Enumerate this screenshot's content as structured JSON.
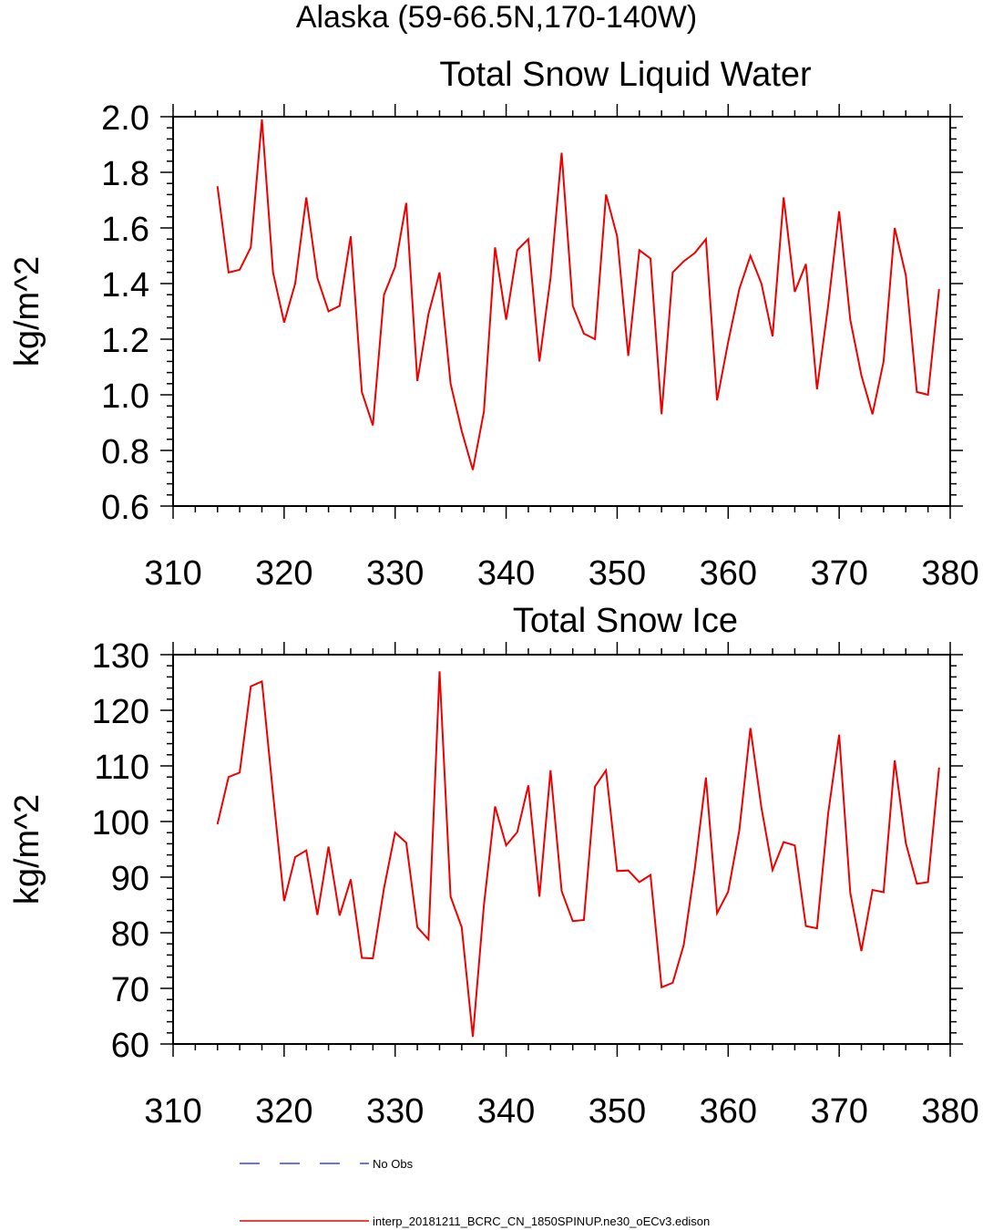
{
  "header": {
    "title": "Alaska (59-66.5N,170-140W)"
  },
  "legend": {
    "entries": [
      {
        "label": "No Obs",
        "color": "#3344ee",
        "style": "dashed"
      },
      {
        "label": "interp_20181211_BCRC_CN_1850SPINUP.ne30_oECv3.edison",
        "color": "#ee0000",
        "style": "solid"
      }
    ]
  },
  "chart_data": [
    {
      "type": "line",
      "title": "Total Snow Liquid Water",
      "xlabel": "",
      "ylabel": "kg/m^2",
      "xlim": [
        310,
        380
      ],
      "ylim": [
        0.6,
        2.0
      ],
      "xticks": [
        310,
        320,
        330,
        340,
        350,
        360,
        370,
        380
      ],
      "xtick_labels": [
        "310",
        "320",
        "330",
        "340",
        "350",
        "360",
        "370",
        "380"
      ],
      "yticks": [
        0.6,
        0.8,
        1.0,
        1.2,
        1.4,
        1.6,
        1.8,
        2.0
      ],
      "ytick_labels": [
        "0.6",
        "0.8",
        "1.0",
        "1.2",
        "1.4",
        "1.6",
        "1.8",
        "2.0"
      ],
      "grid": false,
      "series": [
        {
          "name": "interp_20181211_BCRC_CN_1850SPINUP.ne30_oECv3.edison",
          "color": "#ee0000",
          "x": [
            314,
            315,
            316,
            317,
            318,
            319,
            320,
            321,
            322,
            323,
            324,
            325,
            326,
            327,
            328,
            329,
            330,
            331,
            332,
            333,
            334,
            335,
            336,
            337,
            338,
            339,
            340,
            341,
            342,
            343,
            344,
            345,
            346,
            347,
            348,
            349,
            350,
            351,
            352,
            353,
            354,
            355,
            356,
            357,
            358,
            359,
            360,
            361,
            362,
            363,
            364,
            365,
            366,
            367,
            368,
            369,
            370,
            371,
            372,
            373,
            374,
            375,
            376,
            377,
            378,
            379
          ],
          "values": [
            1.75,
            1.44,
            1.45,
            1.53,
            1.99,
            1.44,
            1.26,
            1.4,
            1.71,
            1.42,
            1.3,
            1.32,
            1.57,
            1.01,
            0.89,
            1.36,
            1.46,
            1.69,
            1.05,
            1.29,
            1.44,
            1.04,
            0.87,
            0.73,
            0.94,
            1.53,
            1.27,
            1.52,
            1.56,
            1.12,
            1.42,
            1.87,
            1.32,
            1.22,
            1.2,
            1.72,
            1.57,
            1.14,
            1.52,
            1.49,
            0.93,
            1.44,
            1.48,
            1.51,
            1.56,
            0.98,
            1.19,
            1.38,
            1.5,
            1.4,
            1.21,
            1.71,
            1.37,
            1.47,
            1.02,
            1.32,
            1.66,
            1.27,
            1.07,
            0.93,
            1.12,
            1.6,
            1.43,
            1.01,
            1.0,
            1.38
          ]
        }
      ]
    },
    {
      "type": "line",
      "title": "Total Snow Ice",
      "xlabel": "",
      "ylabel": "kg/m^2",
      "xlim": [
        310,
        380
      ],
      "ylim": [
        60,
        130
      ],
      "xticks": [
        310,
        320,
        330,
        340,
        350,
        360,
        370,
        380
      ],
      "xtick_labels": [
        "310",
        "320",
        "330",
        "340",
        "350",
        "360",
        "370",
        "380"
      ],
      "yticks": [
        60,
        70,
        80,
        90,
        100,
        110,
        120,
        130
      ],
      "ytick_labels": [
        "60",
        "70",
        "80",
        "90",
        "100",
        "110",
        "120",
        "130"
      ],
      "grid": false,
      "series": [
        {
          "name": "interp_20181211_BCRC_CN_1850SPINUP.ne30_oECv3.edison",
          "color": "#ee0000",
          "x": [
            314,
            315,
            316,
            317,
            318,
            319,
            320,
            321,
            322,
            323,
            324,
            325,
            326,
            327,
            328,
            329,
            330,
            331,
            332,
            333,
            334,
            335,
            336,
            337,
            338,
            339,
            340,
            341,
            342,
            343,
            344,
            345,
            346,
            347,
            348,
            349,
            350,
            351,
            352,
            353,
            354,
            355,
            356,
            357,
            358,
            359,
            360,
            361,
            362,
            363,
            364,
            365,
            366,
            367,
            368,
            369,
            370,
            371,
            372,
            373,
            374,
            375,
            376,
            377,
            378,
            379
          ],
          "values": [
            99.5,
            108.0,
            108.8,
            124.3,
            125.2,
            105.0,
            85.7,
            93.6,
            94.8,
            83.2,
            95.5,
            83.1,
            89.6,
            75.5,
            75.4,
            88.0,
            98.0,
            96.2,
            81.0,
            78.8,
            127.0,
            86.5,
            81.0,
            61.3,
            85.0,
            102.7,
            95.7,
            98.1,
            106.5,
            86.5,
            109.2,
            87.5,
            82.1,
            82.3,
            106.3,
            109.2,
            91.1,
            91.2,
            89.1,
            90.4,
            70.2,
            71.0,
            77.8,
            91.6,
            107.9,
            83.5,
            87.4,
            98.4,
            116.8,
            102.5,
            91.3,
            96.3,
            95.7,
            81.2,
            80.8,
            101.4,
            115.6,
            87.2,
            76.7,
            87.7,
            87.3,
            111.0,
            96.1,
            88.8,
            89.1,
            109.7
          ]
        }
      ]
    }
  ]
}
